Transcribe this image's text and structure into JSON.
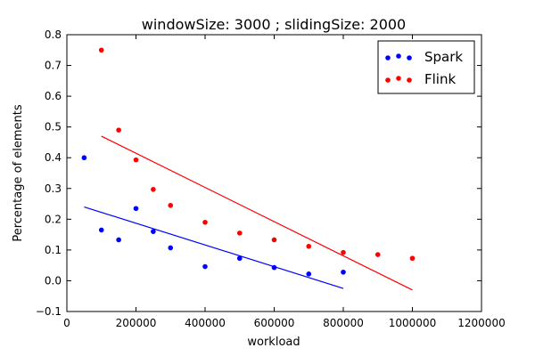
{
  "chart_data": {
    "type": "scatter",
    "title": "windowSize: 3000 ; slidingSize: 2000",
    "xlabel": "workload",
    "ylabel": "Percentage of elements",
    "xlim": [
      0,
      1200000
    ],
    "ylim": [
      -0.1,
      0.8
    ],
    "x_ticks": [
      0,
      200000,
      400000,
      600000,
      800000,
      1000000,
      1200000
    ],
    "y_ticks": [
      -0.1,
      0.0,
      0.1,
      0.2,
      0.3,
      0.4,
      0.5,
      0.6,
      0.7,
      0.8
    ],
    "x_tick_labels": [
      "0",
      "200000",
      "400000",
      "600000",
      "800000",
      "1000000",
      "1200000"
    ],
    "y_tick_labels": [
      "−0.1",
      "0.0",
      "0.1",
      "0.2",
      "0.3",
      "0.4",
      "0.5",
      "0.6",
      "0.7",
      "0.8"
    ],
    "grid": false,
    "legend_position": "top-right",
    "series": [
      {
        "name": "Spark",
        "color": "#0000ff",
        "points": [
          [
            50000,
            0.4
          ],
          [
            100000,
            0.165
          ],
          [
            150000,
            0.133
          ],
          [
            200000,
            0.235
          ],
          [
            250000,
            0.16
          ],
          [
            300000,
            0.107
          ],
          [
            400000,
            0.046
          ],
          [
            500000,
            0.073
          ],
          [
            600000,
            0.043
          ],
          [
            700000,
            0.022
          ],
          [
            800000,
            0.028
          ]
        ],
        "fit_line": [
          [
            50000,
            0.24
          ],
          [
            800000,
            -0.025
          ]
        ]
      },
      {
        "name": "Flink",
        "color": "#ff0000",
        "points": [
          [
            100000,
            0.75
          ],
          [
            150000,
            0.49
          ],
          [
            200000,
            0.393
          ],
          [
            250000,
            0.297
          ],
          [
            300000,
            0.245
          ],
          [
            400000,
            0.19
          ],
          [
            500000,
            0.155
          ],
          [
            600000,
            0.133
          ],
          [
            700000,
            0.112
          ],
          [
            800000,
            0.092
          ],
          [
            900000,
            0.085
          ],
          [
            1000000,
            0.073
          ]
        ],
        "fit_line": [
          [
            100000,
            0.47
          ],
          [
            1000000,
            -0.03
          ]
        ]
      }
    ]
  }
}
